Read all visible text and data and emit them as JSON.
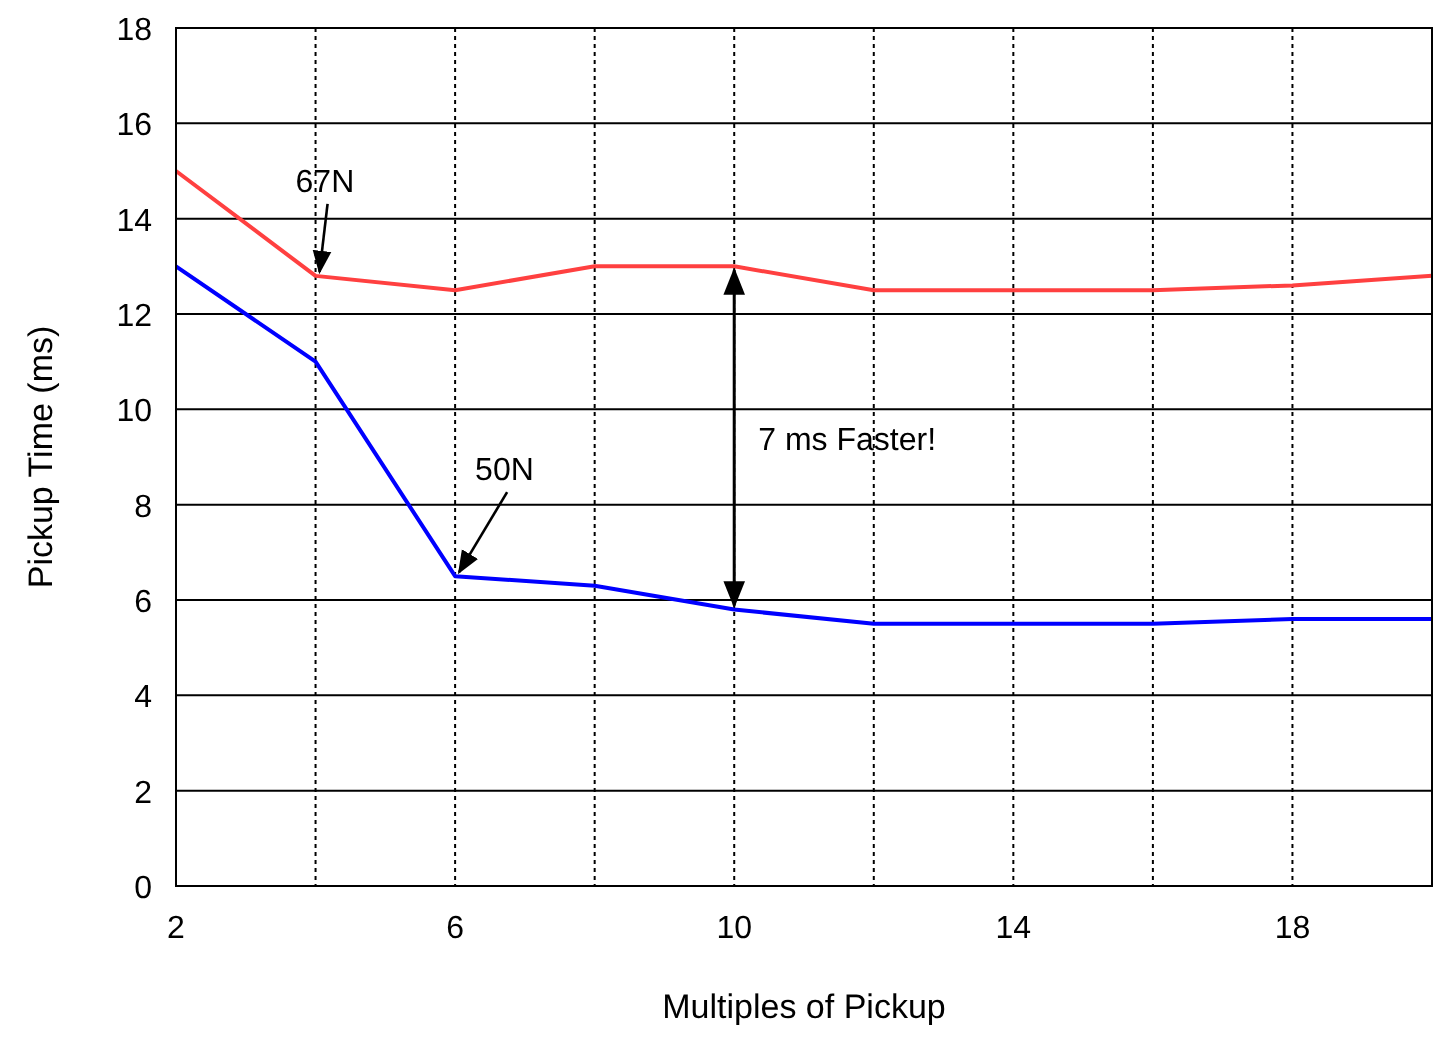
{
  "chart_data": {
    "type": "line",
    "xlabel": "Multiples of Pickup",
    "ylabel": "Pickup Time (ms)",
    "x": [
      2,
      4,
      6,
      8,
      10,
      12,
      14,
      16,
      18,
      20
    ],
    "series": [
      {
        "color": "#ff4040",
        "values": [
          15,
          12.8,
          12.5,
          13,
          13,
          12.5,
          12.5,
          12.5,
          12.6,
          12.8
        ]
      },
      {
        "color": "#0000ff",
        "values": [
          13,
          11,
          6.5,
          6.3,
          5.8,
          5.5,
          5.5,
          5.5,
          5.6,
          5.6
        ]
      }
    ],
    "xlim": [
      2,
      20
    ],
    "xticks": [
      2,
      {
        "value": 4,
        "label": null
      },
      6,
      {
        "value": 8,
        "label": null
      },
      10,
      {
        "value": 12,
        "label": null
      },
      14,
      {
        "value": 16,
        "label": null
      },
      18,
      {
        "value": 20,
        "label": null
      }
    ],
    "ylim": [
      0,
      18
    ],
    "yticks": [
      0,
      2,
      4,
      6,
      8,
      10,
      12,
      14,
      16,
      18
    ],
    "grid": true,
    "marker": "none",
    "line_style": "solid",
    "annotations": [
      {
        "text": "67N",
        "x": 4,
        "y": 12.8
      },
      {
        "text": "50N",
        "x": 6,
        "y": 6.5
      },
      "7 ms Faster!"
    ]
  }
}
